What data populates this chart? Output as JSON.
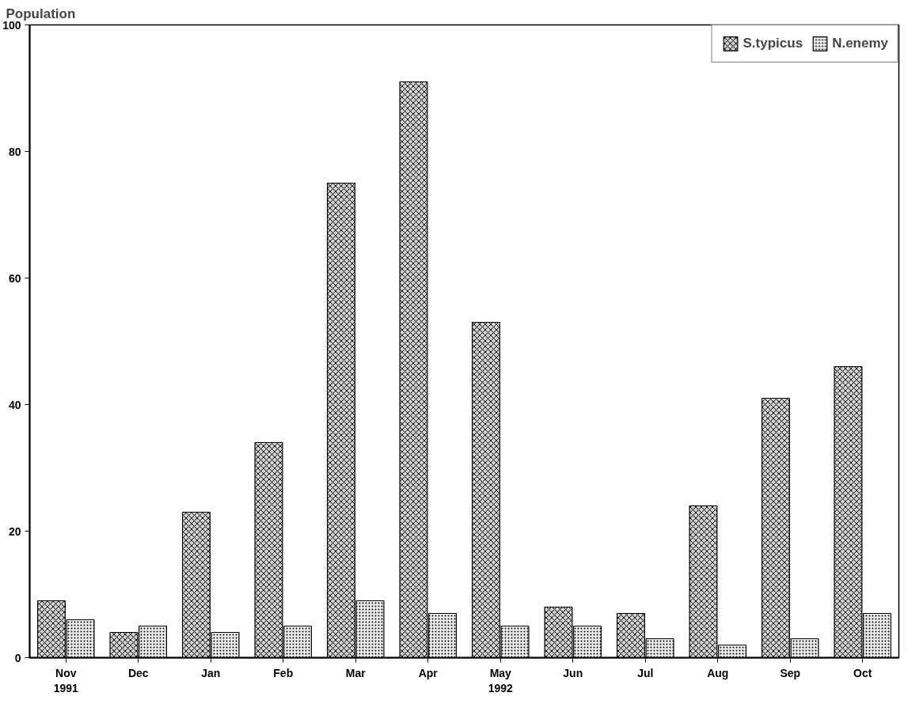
{
  "chart_data": {
    "type": "bar",
    "ylabel": "Population",
    "categories": [
      "Nov\n1991",
      "Dec",
      "Jan",
      "Feb",
      "Mar",
      "Apr",
      "May\n1992",
      "Jun",
      "Jul",
      "Aug",
      "Sep",
      "Oct"
    ],
    "series": [
      {
        "name": "S.typicus",
        "color": "#d0d0d0",
        "values": [
          9,
          4,
          23,
          34,
          75,
          91,
          53,
          8,
          7,
          24,
          41,
          46
        ]
      },
      {
        "name": "N.enemy",
        "color": "#eeeeee",
        "values": [
          6,
          5,
          4,
          5,
          9,
          7,
          5,
          5,
          3,
          2,
          3,
          7
        ]
      }
    ],
    "ylim": [
      0,
      100
    ],
    "yticks": [
      0,
      20,
      40,
      60,
      80,
      100
    ],
    "grid": false,
    "legend": "top right"
  }
}
